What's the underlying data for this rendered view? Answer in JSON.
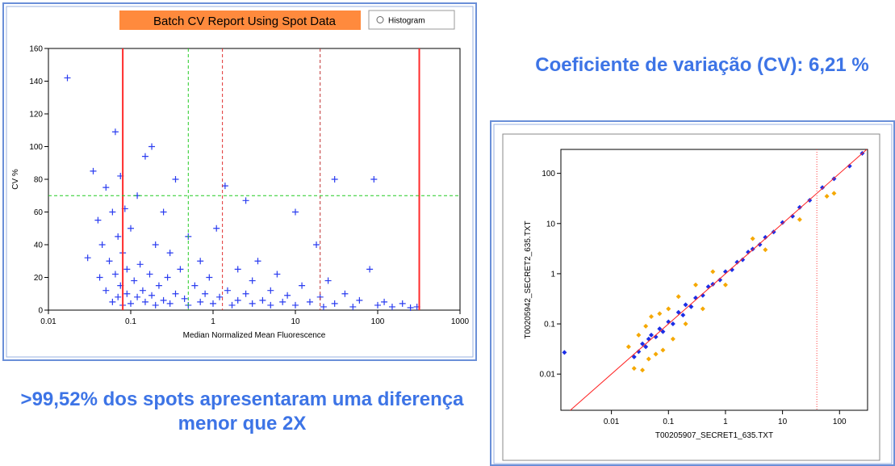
{
  "slide": {
    "caption_top": "Coeficiente de variação (CV): 6,21 %",
    "caption_bottom": ">99,52% dos spots apresentaram uma diferença menor que 2X",
    "histogram_option": "Histogram"
  },
  "chart_data": [
    {
      "type": "scatter",
      "title": "Batch CV Report Using Spot Data",
      "x_label": "Median Normalized Mean Fluorescence",
      "y_label": "CV %",
      "x_log": true,
      "xlim": [
        0.01,
        1000
      ],
      "xticks": [
        0.01,
        0.1,
        1,
        10,
        100,
        1000
      ],
      "ylim": [
        0,
        160
      ],
      "yticks": [
        0,
        20,
        40,
        60,
        80,
        100,
        120,
        140,
        160
      ],
      "marker": "plus",
      "reference_lines": [
        {
          "axis": "x",
          "value": 0.08,
          "color": "#ff2a2a",
          "style": "solid"
        },
        {
          "axis": "x",
          "value": 0.5,
          "color": "#22cc22",
          "style": "dashed"
        },
        {
          "axis": "x",
          "value": 1.3,
          "color": "#e03030",
          "style": "dashed"
        },
        {
          "axis": "x",
          "value": 20,
          "color": "#c03030",
          "style": "dashed"
        },
        {
          "axis": "x",
          "value": 320,
          "color": "#ff2a2a",
          "style": "solid"
        },
        {
          "axis": "y",
          "value": 70,
          "color": "#22cc22",
          "style": "dashed"
        }
      ],
      "series": [
        {
          "color": "#2a3cf0",
          "x": [
            0.017,
            0.03,
            0.035,
            0.04,
            0.042,
            0.045,
            0.05,
            0.05,
            0.055,
            0.06,
            0.06,
            0.065,
            0.065,
            0.07,
            0.07,
            0.075,
            0.075,
            0.08,
            0.08,
            0.085,
            0.09,
            0.09,
            0.1,
            0.1,
            0.11,
            0.12,
            0.12,
            0.13,
            0.14,
            0.15,
            0.15,
            0.17,
            0.18,
            0.18,
            0.2,
            0.2,
            0.22,
            0.25,
            0.25,
            0.28,
            0.3,
            0.3,
            0.35,
            0.35,
            0.4,
            0.45,
            0.5,
            0.5,
            0.6,
            0.7,
            0.7,
            0.8,
            0.9,
            1,
            1.1,
            1.2,
            1.4,
            1.5,
            1.7,
            2,
            2,
            2.5,
            2.5,
            3,
            3,
            3.5,
            4,
            5,
            5,
            6,
            7,
            8,
            10,
            10,
            12,
            15,
            18,
            20,
            22,
            25,
            30,
            30,
            40,
            50,
            60,
            80,
            90,
            100,
            120,
            150,
            200,
            250,
            300
          ],
          "values": [
            142,
            32,
            85,
            55,
            20,
            40,
            75,
            12,
            30,
            60,
            5,
            109,
            22,
            45,
            8,
            82,
            15,
            35,
            3,
            62,
            25,
            10,
            50,
            4,
            18,
            70,
            8,
            28,
            12,
            94,
            5,
            22,
            100,
            9,
            40,
            3,
            15,
            60,
            6,
            20,
            35,
            4,
            80,
            10,
            25,
            7,
            45,
            3,
            15,
            30,
            5,
            10,
            20,
            4,
            50,
            8,
            76,
            12,
            3,
            25,
            6,
            67,
            10,
            4,
            18,
            30,
            6,
            12,
            3,
            22,
            5,
            9,
            60,
            3,
            15,
            5,
            40,
            8,
            2,
            18,
            80,
            4,
            10,
            2,
            6,
            25,
            80,
            3,
            5,
            2,
            4,
            1.5,
            2
          ]
        }
      ]
    },
    {
      "type": "scatter",
      "x_label": "T00205907_SECRET1_635.TXT",
      "y_label": "T00205942_SECRET2_635.TXT",
      "x_log": true,
      "y_log": true,
      "xlim": [
        0.0013,
        310
      ],
      "xticks": [
        0.01,
        0.1,
        1,
        10,
        100
      ],
      "ylim": [
        0.0019,
        300
      ],
      "yticks": [
        0.01,
        0.1,
        1,
        10,
        100
      ],
      "marker": "diamond",
      "identity_line": {
        "color": "#ff2020"
      },
      "reference_lines": [
        {
          "axis": "x",
          "value": 40,
          "color": "#ff4040",
          "style": "dotted"
        }
      ],
      "series": [
        {
          "color": "#f5a800",
          "x": [
            0.02,
            0.025,
            0.03,
            0.035,
            0.04,
            0.045,
            0.05,
            0.06,
            0.07,
            0.08,
            0.1,
            0.12,
            0.15,
            0.2,
            0.3,
            0.4,
            0.6,
            1,
            3,
            5,
            20,
            60,
            80
          ],
          "values": [
            0.035,
            0.013,
            0.06,
            0.012,
            0.09,
            0.02,
            0.14,
            0.025,
            0.16,
            0.03,
            0.2,
            0.05,
            0.35,
            0.1,
            0.6,
            0.2,
            1.1,
            0.6,
            5,
            3,
            12,
            35,
            40
          ]
        },
        {
          "color": "#1c2ee6",
          "x": [
            0.0015,
            0.025,
            0.03,
            0.035,
            0.04,
            0.045,
            0.05,
            0.06,
            0.07,
            0.08,
            0.1,
            0.12,
            0.15,
            0.18,
            0.2,
            0.25,
            0.3,
            0.4,
            0.5,
            0.6,
            0.8,
            1,
            1.3,
            1.6,
            2,
            2.5,
            3,
            4,
            5,
            7,
            10,
            15,
            20,
            30,
            50,
            80,
            150,
            250
          ],
          "values": [
            0.027,
            0.022,
            0.028,
            0.04,
            0.035,
            0.05,
            0.06,
            0.055,
            0.08,
            0.07,
            0.11,
            0.1,
            0.17,
            0.15,
            0.24,
            0.22,
            0.33,
            0.37,
            0.55,
            0.62,
            0.75,
            1.1,
            1.2,
            1.7,
            1.9,
            2.7,
            3.1,
            3.8,
            5.3,
            6.8,
            10.5,
            14,
            21,
            29,
            52,
            78,
            140,
            250
          ]
        }
      ]
    }
  ]
}
